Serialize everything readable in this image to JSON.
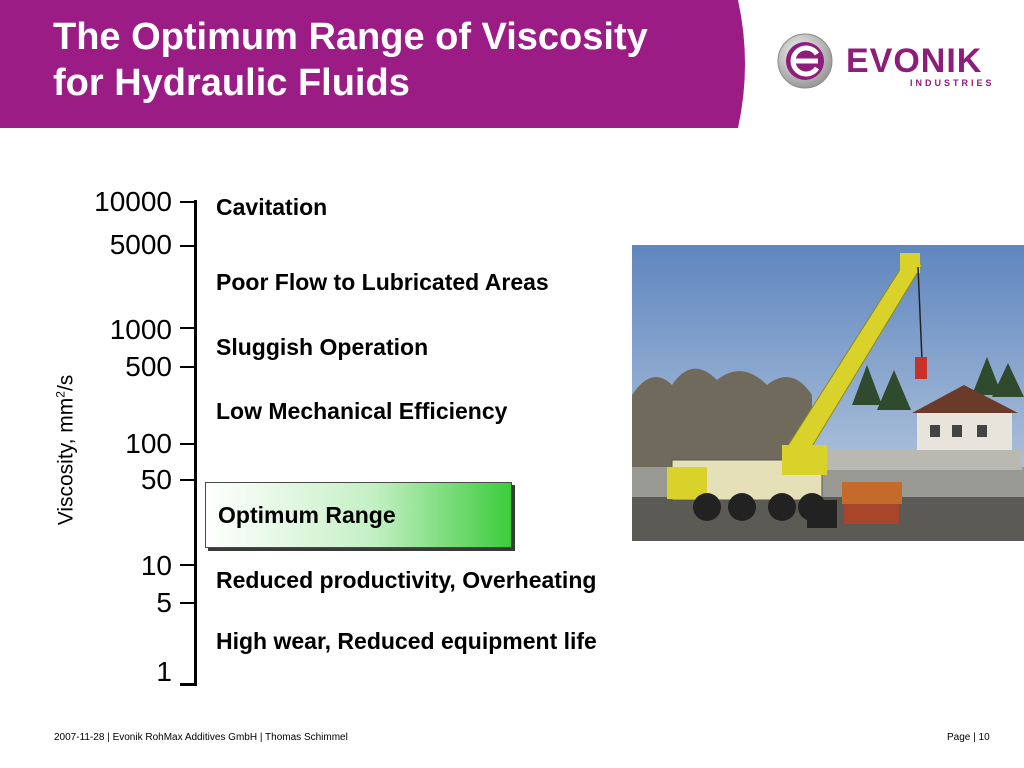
{
  "header": {
    "title_line1": "The Optimum Range of Viscosity",
    "title_line2": "for Hydraulic Fluids",
    "band_color": "#9c1c86"
  },
  "logo": {
    "word": "EVONIK",
    "sub": "INDUSTRIES",
    "color": "#8e1c7b"
  },
  "scale": {
    "axis_title": "Viscosity, mm",
    "axis_title_sup": "2",
    "axis_title_suffix": "/s",
    "ticks": [
      "10000",
      "5000",
      "1000",
      "500",
      "100",
      "50",
      "10",
      "5",
      "1"
    ]
  },
  "ranges": {
    "cavitation": "Cavitation",
    "poor_flow": "Poor Flow to Lubricated Areas",
    "sluggish": "Sluggish Operation",
    "low_efficiency": "Low Mechanical Efficiency",
    "optimum": "Optimum Range",
    "reduced_productivity": "Reduced productivity, Overheating",
    "high_wear": "High wear, Reduced equipment life"
  },
  "footer": {
    "left": "2007-11-28 | Evonik RohMax Additives GmbH | Thomas Schimmel",
    "right": "Page | 10"
  }
}
